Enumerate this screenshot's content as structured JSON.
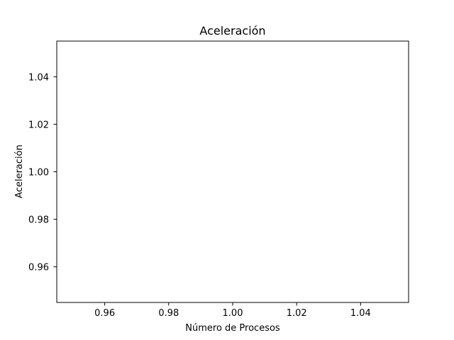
{
  "chart_data": {
    "type": "line",
    "title": "Aceleración",
    "xlabel": "Número de Procesos",
    "ylabel": "Aceleración",
    "xlim": [
      0.945,
      1.055
    ],
    "ylim": [
      0.945,
      1.055
    ],
    "xticks": [
      0.96,
      0.98,
      1.0,
      1.02,
      1.04
    ],
    "yticks": [
      0.96,
      0.98,
      1.0,
      1.02,
      1.04
    ],
    "xtick_labels": [
      "0.96",
      "0.98",
      "1.00",
      "1.02",
      "1.04"
    ],
    "ytick_labels": [
      "0.96",
      "0.98",
      "1.00",
      "1.02",
      "1.04"
    ],
    "grid": false,
    "series": []
  }
}
